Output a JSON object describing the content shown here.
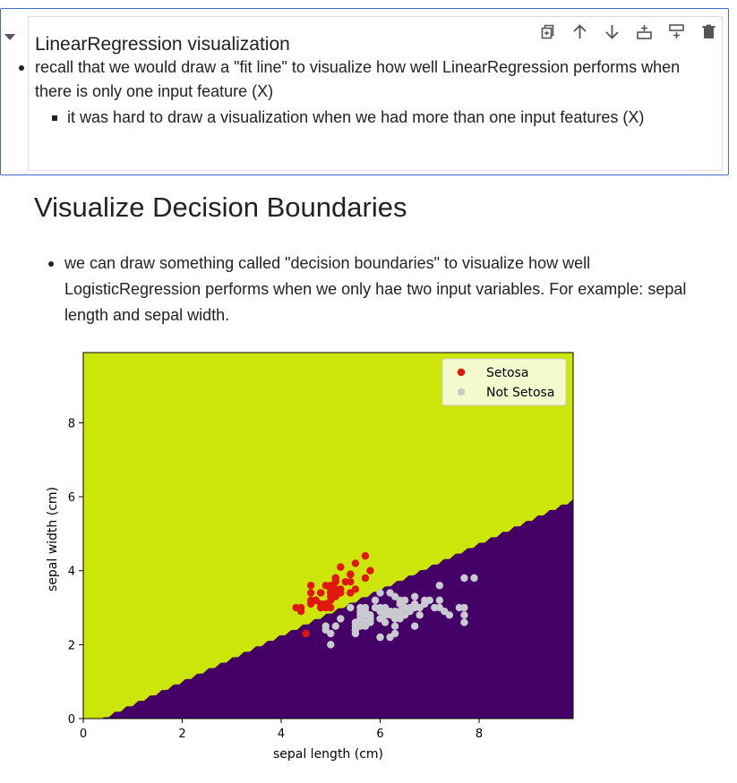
{
  "cell": {
    "title": "LinearRegression visualization",
    "bullets": [
      "recall that we would draw a \"fit line\" to visualize how well LinearRegression performs when there is only one input feature (X)"
    ],
    "sub_bullets": [
      "it was hard to draw a visualization when we had more than one input features (X)"
    ],
    "toolbar_icons": [
      "duplicate-icon",
      "move-up-icon",
      "move-down-icon",
      "insert-below-icon",
      "insert-above-icon",
      "delete-icon"
    ]
  },
  "section": {
    "heading": "Visualize Decision Boundaries",
    "bullets": [
      "we can draw something called \"decision boundaries\" to visualize how well LogisticRegression performs when we only hae two input variables. For example: sepal length and sepal width."
    ]
  },
  "colors": {
    "region_setosa": "#cce60a",
    "region_not_setosa": "#440066",
    "setosa_points": "#e0170c",
    "not_setosa_points": "#c9c9cf",
    "cell_border": "#4a68c9"
  },
  "chart_data": {
    "type": "scatter",
    "xlabel": "sepal length (cm)",
    "ylabel": "sepal width (cm)",
    "xlim": [
      0,
      9.9
    ],
    "ylim": [
      0,
      9.9
    ],
    "xticks": [
      0,
      2,
      4,
      6,
      8
    ],
    "yticks": [
      0,
      2,
      4,
      6,
      8
    ],
    "grid": false,
    "legend": "top-right",
    "decision_boundary": {
      "points": [
        [
          0.4,
          0
        ],
        [
          9.9,
          5.9
        ]
      ]
    },
    "series": [
      {
        "name": "Setosa",
        "color": "#e0170c",
        "points": [
          [
            4.3,
            3.0
          ],
          [
            4.4,
            3.0
          ],
          [
            4.4,
            2.9
          ],
          [
            4.5,
            2.3
          ],
          [
            4.6,
            3.1
          ],
          [
            4.6,
            3.4
          ],
          [
            4.6,
            3.6
          ],
          [
            4.6,
            3.2
          ],
          [
            4.7,
            3.2
          ],
          [
            4.7,
            3.2
          ],
          [
            4.8,
            3.4
          ],
          [
            4.8,
            3.0
          ],
          [
            4.8,
            3.4
          ],
          [
            4.8,
            3.1
          ],
          [
            4.8,
            3.0
          ],
          [
            4.9,
            3.0
          ],
          [
            4.9,
            3.1
          ],
          [
            4.9,
            3.6
          ],
          [
            5.0,
            3.6
          ],
          [
            5.0,
            3.4
          ],
          [
            5.0,
            3.0
          ],
          [
            5.0,
            3.4
          ],
          [
            5.0,
            3.2
          ],
          [
            5.0,
            3.5
          ],
          [
            5.0,
            3.5
          ],
          [
            5.0,
            3.3
          ],
          [
            5.1,
            3.5
          ],
          [
            5.1,
            3.5
          ],
          [
            5.1,
            3.8
          ],
          [
            5.1,
            3.8
          ],
          [
            5.1,
            3.7
          ],
          [
            5.1,
            3.3
          ],
          [
            5.1,
            3.4
          ],
          [
            5.1,
            3.8
          ],
          [
            5.2,
            3.5
          ],
          [
            5.2,
            3.4
          ],
          [
            5.2,
            4.1
          ],
          [
            5.3,
            3.7
          ],
          [
            5.4,
            3.9
          ],
          [
            5.4,
            3.7
          ],
          [
            5.4,
            3.9
          ],
          [
            5.4,
            3.4
          ],
          [
            5.4,
            3.4
          ],
          [
            5.5,
            4.2
          ],
          [
            5.5,
            3.5
          ],
          [
            5.7,
            4.4
          ],
          [
            5.7,
            3.8
          ],
          [
            5.8,
            4.0
          ]
        ]
      },
      {
        "name": "Not Setosa",
        "color": "#c9c9cf",
        "points": [
          [
            4.9,
            2.4
          ],
          [
            4.9,
            2.5
          ],
          [
            5.0,
            2.0
          ],
          [
            5.0,
            2.3
          ],
          [
            5.1,
            2.5
          ],
          [
            5.2,
            2.7
          ],
          [
            5.4,
            3.0
          ],
          [
            5.5,
            2.3
          ],
          [
            5.5,
            2.4
          ],
          [
            5.5,
            2.4
          ],
          [
            5.5,
            2.5
          ],
          [
            5.5,
            2.6
          ],
          [
            5.6,
            2.9
          ],
          [
            5.6,
            3.0
          ],
          [
            5.6,
            2.5
          ],
          [
            5.6,
            2.7
          ],
          [
            5.6,
            2.8
          ],
          [
            5.7,
            2.8
          ],
          [
            5.7,
            2.6
          ],
          [
            5.7,
            3.0
          ],
          [
            5.7,
            2.9
          ],
          [
            5.7,
            2.5
          ],
          [
            5.8,
            2.7
          ],
          [
            5.8,
            2.7
          ],
          [
            5.8,
            2.6
          ],
          [
            5.8,
            2.8
          ],
          [
            5.9,
            3.0
          ],
          [
            5.9,
            3.2
          ],
          [
            6.0,
            2.2
          ],
          [
            6.0,
            2.9
          ],
          [
            6.0,
            2.7
          ],
          [
            6.0,
            3.4
          ],
          [
            6.0,
            2.2
          ],
          [
            6.0,
            3.0
          ],
          [
            6.1,
            2.9
          ],
          [
            6.1,
            2.8
          ],
          [
            6.1,
            2.8
          ],
          [
            6.1,
            3.0
          ],
          [
            6.1,
            2.6
          ],
          [
            6.2,
            2.2
          ],
          [
            6.2,
            2.9
          ],
          [
            6.2,
            2.8
          ],
          [
            6.2,
            3.4
          ],
          [
            6.3,
            3.3
          ],
          [
            6.3,
            2.5
          ],
          [
            6.3,
            2.3
          ],
          [
            6.3,
            2.9
          ],
          [
            6.3,
            2.7
          ],
          [
            6.3,
            2.8
          ],
          [
            6.4,
            3.2
          ],
          [
            6.4,
            2.9
          ],
          [
            6.4,
            2.7
          ],
          [
            6.4,
            3.1
          ],
          [
            6.4,
            2.8
          ],
          [
            6.5,
            2.8
          ],
          [
            6.5,
            3.0
          ],
          [
            6.5,
            3.2
          ],
          [
            6.6,
            2.9
          ],
          [
            6.6,
            3.0
          ],
          [
            6.7,
            3.1
          ],
          [
            6.7,
            3.0
          ],
          [
            6.7,
            2.5
          ],
          [
            6.7,
            3.3
          ],
          [
            6.8,
            2.8
          ],
          [
            6.8,
            3.0
          ],
          [
            6.9,
            3.1
          ],
          [
            6.9,
            3.2
          ],
          [
            7.0,
            3.2
          ],
          [
            7.1,
            3.0
          ],
          [
            7.2,
            3.6
          ],
          [
            7.2,
            3.2
          ],
          [
            7.2,
            3.0
          ],
          [
            7.3,
            2.9
          ],
          [
            7.4,
            2.8
          ],
          [
            7.6,
            3.0
          ],
          [
            7.7,
            3.8
          ],
          [
            7.7,
            2.6
          ],
          [
            7.7,
            2.8
          ],
          [
            7.7,
            3.0
          ],
          [
            7.9,
            3.8
          ]
        ]
      }
    ]
  }
}
